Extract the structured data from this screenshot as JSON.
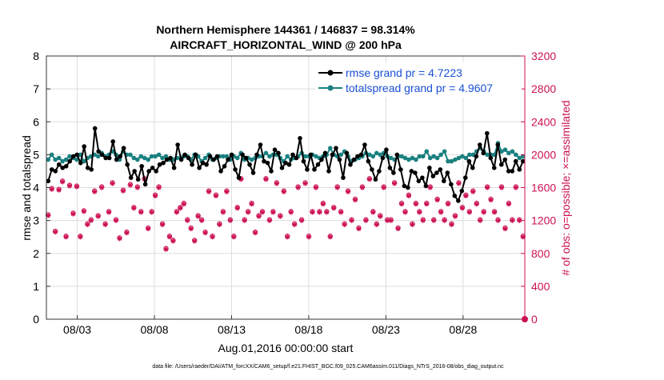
{
  "chart_data": {
    "type": "line",
    "title_line1": "Northern Hemisphere 144361 / 146837 = 98.314%",
    "title_line2": "AIRCRAFT_HORIZONTAL_WIND @ 200 hPa",
    "xlabel": "Aug.01,2016 00:00:00 start",
    "ylabel_left": "rmse and totalspread",
    "ylabel_right": "# of obs: o=possible; ×=assimilated",
    "footer": "data file: /Users/raeder/DAI/ATM_forcXX/CAM6_setup/f.e21.FHIST_BGC.f09_025.CAM6assim.011/Diags_NTrS_2016-08/obs_diag_output.nc",
    "x_unit": "days since Aug.01,2016 00:00",
    "xlim": [
      0.0,
      31.0
    ],
    "ylim_left": [
      0,
      8
    ],
    "ylim_right": [
      0,
      3200
    ],
    "x_ticks": [
      {
        "x": 2.0,
        "label": "08/03"
      },
      {
        "x": 7.0,
        "label": "08/08"
      },
      {
        "x": 12.0,
        "label": "08/13"
      },
      {
        "x": 17.0,
        "label": "08/18"
      },
      {
        "x": 22.0,
        "label": "08/23"
      },
      {
        "x": 27.0,
        "label": "08/28"
      }
    ],
    "y_ticks_left": [
      "0",
      "1",
      "2",
      "3",
      "4",
      "5",
      "6",
      "7",
      "8"
    ],
    "y_ticks_right": [
      "0",
      "400",
      "800",
      "1200",
      "1600",
      "2000",
      "2400",
      "2800",
      "3200"
    ],
    "colors": {
      "rmse": "#000000",
      "spread": "#1a8080",
      "obs": "#cc1155",
      "legend_text": "#1a4fd6"
    },
    "series": [
      {
        "name": "rmse grand pr = 4.7223",
        "color": "#000000",
        "axis": "left",
        "values": [
          4.2,
          4.55,
          4.5,
          4.7,
          4.6,
          4.65,
          4.8,
          4.95,
          5.0,
          4.75,
          5.25,
          4.6,
          4.55,
          5.8,
          5.1,
          5.0,
          4.9,
          4.9,
          5.4,
          4.85,
          4.95,
          5.2,
          4.7,
          4.3,
          4.5,
          4.25,
          4.65,
          4.1,
          4.5,
          4.6,
          4.5,
          4.7,
          4.75,
          4.85,
          4.9,
          4.6,
          5.3,
          4.85,
          5.0,
          4.9,
          4.7,
          5.0,
          4.6,
          4.75,
          4.7,
          4.95,
          4.85,
          4.95,
          4.5,
          4.65,
          4.85,
          5.0,
          4.55,
          4.3,
          5.0,
          4.9,
          4.7,
          4.45,
          5.0,
          5.3,
          4.8,
          4.75,
          4.5,
          5.15,
          5.05,
          4.6,
          4.75,
          4.7,
          5.0,
          4.9,
          5.5,
          4.8,
          4.55,
          5.0,
          4.55,
          4.7,
          4.85,
          5.05,
          4.5,
          5.0,
          5.2,
          4.85,
          4.3,
          5.05,
          4.7,
          4.85,
          4.95,
          5.0,
          5.3,
          4.8,
          4.55,
          4.25,
          4.5,
          4.9,
          5.15,
          4.6,
          4.45,
          5.0,
          4.55,
          4.05,
          4.0,
          4.5,
          4.45,
          4.2,
          4.3,
          4.05,
          4.6,
          4.35,
          4.45,
          4.55,
          4.2,
          4.45,
          4.1,
          3.75,
          3.6,
          3.9,
          4.3,
          4.8,
          4.6,
          4.95,
          5.3,
          5.05,
          5.65,
          4.9,
          4.6,
          5.3,
          4.7,
          4.85,
          4.5,
          4.5,
          4.8,
          4.55,
          4.8
        ]
      },
      {
        "name": "totalspread grand pr = 4.9607",
        "color": "#1a8080",
        "axis": "left",
        "values": [
          4.85,
          5.0,
          4.85,
          4.9,
          4.8,
          4.85,
          4.95,
          4.9,
          4.85,
          5.0,
          4.8,
          4.9,
          4.95,
          5.0,
          4.95,
          5.05,
          4.95,
          5.0,
          5.1,
          5.0,
          4.85,
          5.1,
          5.0,
          5.0,
          4.9,
          4.85,
          4.95,
          4.9,
          4.85,
          4.95,
          4.95,
          5.0,
          4.9,
          4.95,
          4.85,
          4.85,
          4.9,
          4.9,
          4.95,
          4.95,
          4.85,
          5.0,
          4.95,
          4.8,
          4.9,
          5.0,
          4.85,
          4.9,
          4.95,
          4.95,
          4.95,
          4.85,
          4.95,
          4.9,
          5.05,
          4.85,
          4.9,
          4.85,
          4.9,
          4.95,
          4.95,
          5.05,
          4.95,
          5.0,
          5.0,
          4.9,
          4.8,
          4.95,
          4.85,
          4.9,
          4.95,
          5.05,
          4.95,
          4.95,
          5.0,
          4.95,
          4.9,
          4.95,
          5.0,
          5.2,
          5.0,
          4.95,
          5.0,
          5.1,
          4.95,
          4.8,
          4.85,
          4.9,
          4.95,
          5.05,
          5.0,
          4.95,
          5.05,
          5.0,
          5.05,
          4.95,
          4.9,
          4.85,
          4.95,
          4.95,
          4.9,
          4.85,
          4.9,
          4.85,
          4.95,
          4.95,
          5.1,
          4.9,
          4.95,
          4.9,
          5.0,
          5.1,
          4.8,
          4.8,
          4.85,
          4.9,
          4.95,
          4.9,
          5.0,
          5.0,
          5.1,
          5.2,
          5.1,
          5.0,
          5.0,
          5.0,
          5.35,
          5.1,
          5.15,
          5.05,
          5.1,
          5.0,
          4.9,
          4.95
        ]
      },
      {
        "name": "obs assimilated",
        "marker": "star",
        "color": "#cc1155",
        "axis": "right",
        "values": [
          1260,
          1580,
          1060,
          1570,
          1670,
          1000,
          1620,
          1280,
          1610,
          1000,
          1310,
          1150,
          1200,
          1550,
          1250,
          1600,
          1150,
          1300,
          1650,
          1200,
          980,
          1560,
          1050,
          1630,
          1350,
          1600,
          1300,
          1700,
          1100,
          1300,
          1500,
          1600,
          1150,
          850,
          1000,
          950,
          1300,
          1350,
          1400,
          1200,
          1100,
          950,
          1250,
          1200,
          1050,
          1550,
          1000,
          1500,
          1150,
          1300,
          1550,
          1200,
          1000,
          1350,
          1700,
          1200,
          1300,
          1400,
          1050,
          1250,
          1300,
          1700,
          1200,
          1300,
          1650,
          1250,
          1550,
          1000,
          1300,
          1150,
          1600,
          1200,
          1650,
          1000,
          1300,
          1600,
          1300,
          1400,
          1300,
          1000,
          1350,
          1600,
          1300,
          1150,
          1550,
          1200,
          1450,
          1100,
          1600,
          1200,
          1700,
          1300,
          1150,
          1250,
          1600,
          1200,
          1200,
          1650,
          1100,
          1400,
          1300,
          1500,
          1150,
          1400,
          1300,
          1200,
          1400,
          1600,
          1200,
          1450,
          1300,
          1200,
          1400,
          1150,
          1250,
          1650,
          1350,
          1500,
          1300,
          1550,
          1400,
          1200,
          1300,
          1600,
          1450,
          1300,
          1200,
          1600,
          1100,
          1400,
          1200,
          1600,
          1200,
          1000
        ]
      },
      {
        "name": "obs possible",
        "marker": "circle",
        "color": "#cc1155",
        "axis": "right",
        "values": [
          1270,
          1590,
          1070,
          1580,
          1680,
          1010,
          1630,
          1290,
          1620,
          1010,
          1320,
          1160,
          1210,
          1560,
          1260,
          1610,
          1160,
          1310,
          1660,
          1210,
          990,
          1570,
          1060,
          1640,
          1360,
          1610,
          1310,
          1710,
          1110,
          1310,
          1510,
          1610,
          1160,
          860,
          1010,
          960,
          1310,
          1360,
          1410,
          1210,
          1110,
          960,
          1260,
          1210,
          1060,
          1560,
          1010,
          1510,
          1160,
          1310,
          1560,
          1210,
          1010,
          1360,
          1710,
          1210,
          1310,
          1410,
          1060,
          1260,
          1310,
          1710,
          1210,
          1310,
          1660,
          1260,
          1560,
          1010,
          1310,
          1160,
          1610,
          1210,
          1660,
          1010,
          1310,
          1610,
          1310,
          1410,
          1310,
          1010,
          1360,
          1610,
          1310,
          1160,
          1560,
          1210,
          1460,
          1110,
          1610,
          1210,
          1710,
          1310,
          1160,
          1260,
          1610,
          1210,
          1210,
          1660,
          1110,
          1410,
          1310,
          1510,
          1160,
          1410,
          1310,
          1210,
          1410,
          1610,
          1210,
          1460,
          1310,
          1210,
          1410,
          1160,
          1260,
          1660,
          1360,
          1510,
          1310,
          1560,
          1410,
          1210,
          1310,
          1610,
          1460,
          1310,
          1210,
          1610,
          1110,
          1410,
          1210,
          1610,
          1210,
          1010
        ]
      },
      {
        "name": "final obs point",
        "marker": "circle-filled",
        "color": "#cc1155",
        "axis": "right",
        "values": [
          0
        ]
      }
    ],
    "legend": {
      "placement": "top-right",
      "entries": [
        "rmse grand pr = 4.7223",
        "totalspread grand pr = 4.9607"
      ]
    },
    "grid": true
  }
}
